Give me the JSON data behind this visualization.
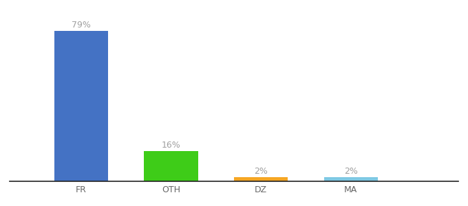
{
  "categories": [
    "FR",
    "OTH",
    "DZ",
    "MA"
  ],
  "values": [
    79,
    16,
    2,
    2
  ],
  "bar_colors": [
    "#4472c4",
    "#3ecc18",
    "#f5a623",
    "#7ec8e3"
  ],
  "labels": [
    "79%",
    "16%",
    "2%",
    "2%"
  ],
  "label_color": "#a0a0a0",
  "background_color": "#ffffff",
  "label_fontsize": 9,
  "tick_fontsize": 9,
  "ylim": [
    0,
    90
  ],
  "bar_width": 0.6,
  "x_positions": [
    1,
    2,
    3,
    4
  ],
  "xlim": [
    0.2,
    5.2
  ]
}
